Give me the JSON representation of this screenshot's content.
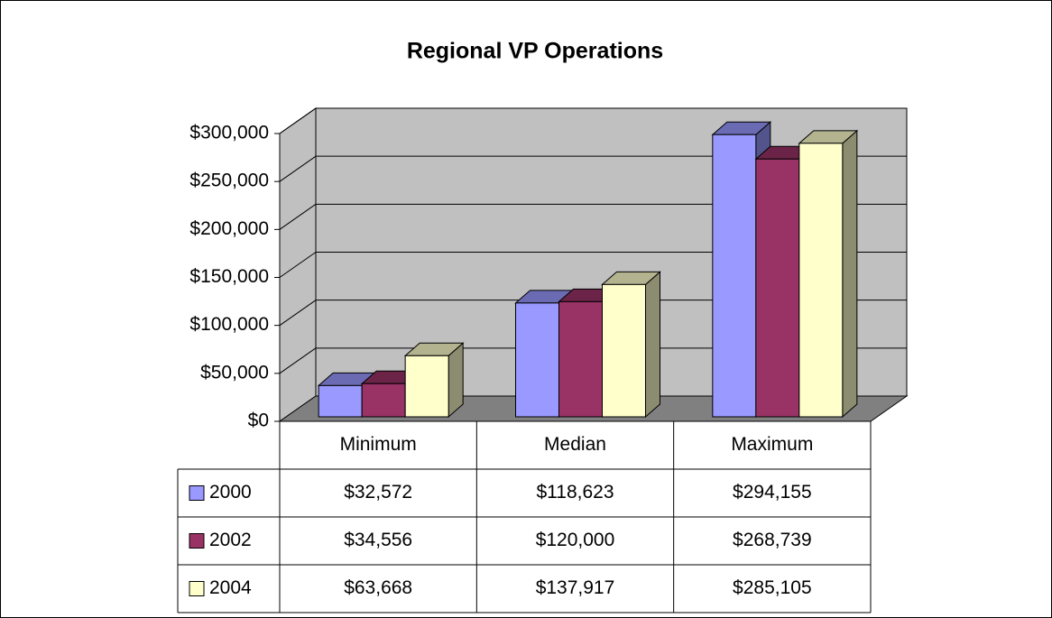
{
  "chart_data": {
    "type": "bar",
    "title": "Regional VP Operations",
    "categories": [
      "Minimum",
      "Median",
      "Maximum"
    ],
    "series": [
      {
        "name": "2000",
        "color": "#9999ff",
        "values": [
          32572,
          118623,
          294155
        ],
        "value_labels": [
          "$32,572",
          "$118,623",
          "$294,155"
        ]
      },
      {
        "name": "2002",
        "color": "#993366",
        "values": [
          34556,
          120000,
          268739
        ],
        "value_labels": [
          "$34,556",
          "$120,000",
          "$268,739"
        ]
      },
      {
        "name": "2004",
        "color": "#ffffcc",
        "values": [
          63668,
          137917,
          285105
        ],
        "value_labels": [
          "$63,668",
          "$137,917",
          "$285,105"
        ]
      }
    ],
    "ylim": [
      0,
      300000
    ],
    "yticks": [
      {
        "value": 0,
        "label": "$0"
      },
      {
        "value": 50000,
        "label": "$50,000"
      },
      {
        "value": 100000,
        "label": "$100,000"
      },
      {
        "value": 150000,
        "label": "$150,000"
      },
      {
        "value": 200000,
        "label": "$200,000"
      },
      {
        "value": 250000,
        "label": "$250,000"
      },
      {
        "value": 300000,
        "label": "$300,000"
      }
    ],
    "grid": true
  }
}
